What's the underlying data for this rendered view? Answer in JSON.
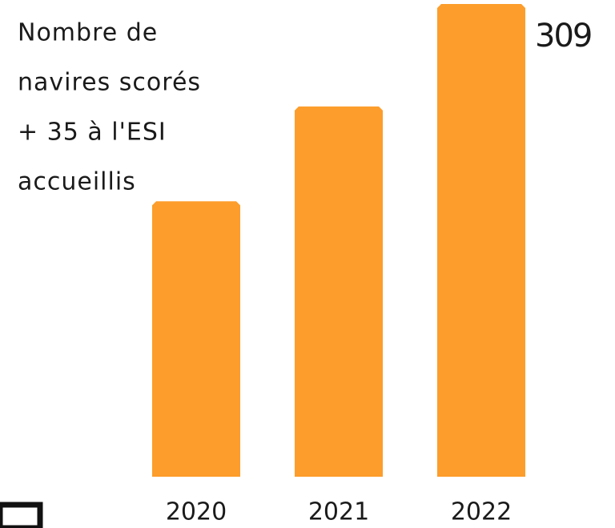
{
  "chart_data": {
    "type": "bar",
    "title": [
      "Nombre de",
      "navires scorés",
      "+ 35 à l'ESI",
      "accueillis"
    ],
    "categories": [
      "2020",
      "2021",
      "2022"
    ],
    "values": [
      180,
      242,
      309
    ],
    "value_labels": [
      null,
      null,
      "309"
    ],
    "color": "#fd9d2b",
    "ylim": [
      0,
      309
    ]
  }
}
